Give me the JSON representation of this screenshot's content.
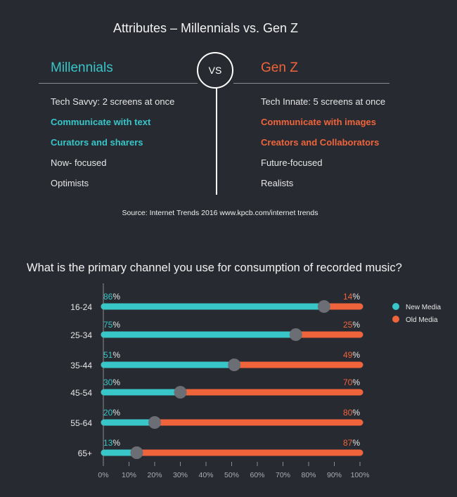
{
  "top": {
    "title": "Attributes – Millennials vs. Gen Z",
    "vs_label": "VS",
    "left_heading": "Millennials",
    "right_heading": "Gen Z",
    "left_traits": [
      "Tech Savvy: 2 screens at once",
      "Communicate with text",
      "Curators and sharers",
      "Now- focused",
      "Optimists"
    ],
    "right_traits": [
      "Tech Innate: 5 screens at once",
      "Communicate with images",
      "Creators and Collaborators",
      "Future-focused",
      "Realists"
    ],
    "highlighted_trait_rows": [
      1,
      2
    ],
    "source": "Source: Internet Trends 2016 www.kpcb.com/internet trends"
  },
  "colors": {
    "background": "#272a30",
    "new_media": "#38c6c9",
    "old_media": "#f0643c",
    "knob": "#6b6e74"
  },
  "chart_data": {
    "type": "bar",
    "title": "What is the primary channel you use for consumption of recorded music?",
    "orientation": "horizontal-stacked-percent",
    "categories": [
      "16-24",
      "25-34",
      "35-44",
      "45-54",
      "55-64",
      "65+"
    ],
    "series": [
      {
        "name": "New Media",
        "values": [
          86,
          75,
          51,
          30,
          20,
          13
        ]
      },
      {
        "name": "Old Media",
        "values": [
          14,
          25,
          49,
          70,
          80,
          87
        ]
      }
    ],
    "xlim": [
      0,
      100
    ],
    "xticks": [
      "0%",
      "10%",
      "20%",
      "30%",
      "40%",
      "50%",
      "60%",
      "70%",
      "80%",
      "90%",
      "100%"
    ],
    "value_suffix": "%",
    "legend_position": "top-right",
    "grid": false
  }
}
